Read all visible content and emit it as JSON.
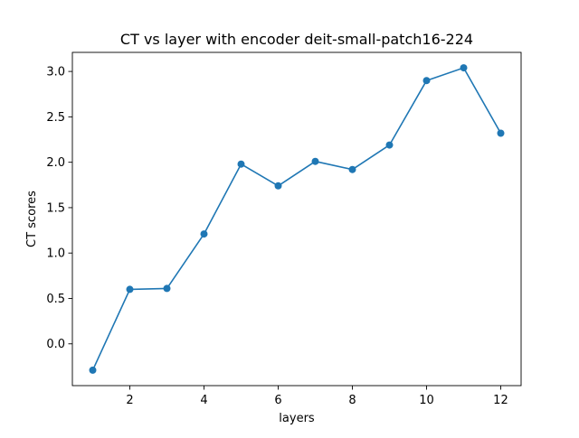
{
  "chart_data": {
    "type": "line",
    "title": "CT vs layer with encoder deit-small-patch16-224",
    "xlabel": "layers",
    "ylabel": "CT scores",
    "x": [
      1,
      2,
      3,
      4,
      5,
      6,
      7,
      8,
      9,
      10,
      11,
      12
    ],
    "series": [
      {
        "values": [
          -0.29,
          0.6,
          0.61,
          1.21,
          1.98,
          1.74,
          2.01,
          1.92,
          2.19,
          2.9,
          3.04,
          2.32
        ],
        "color": "#1f77b4",
        "marker": "circle"
      }
    ],
    "xlim": [
      0.45,
      12.55
    ],
    "ylim": [
      -0.46,
      3.21
    ],
    "xticks": [
      2,
      4,
      6,
      8,
      10,
      12
    ],
    "yticks": [
      0.0,
      0.5,
      1.0,
      1.5,
      2.0,
      2.5,
      3.0
    ],
    "xtick_labels": [
      "2",
      "4",
      "6",
      "8",
      "10",
      "12"
    ],
    "ytick_labels": [
      "0.0",
      "0.5",
      "1.0",
      "1.5",
      "2.0",
      "2.5",
      "3.0"
    ],
    "grid": false,
    "legend": "none"
  }
}
